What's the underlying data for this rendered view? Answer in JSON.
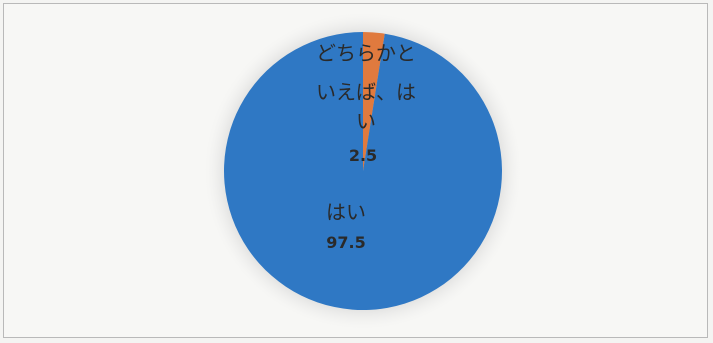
{
  "chart_data": {
    "type": "pie",
    "slices": [
      {
        "label": "はい",
        "value": 97.5,
        "color": "#2f78c4"
      },
      {
        "label": "どちらかといえば、はい",
        "value": 2.5,
        "color": "#e07a3e"
      }
    ],
    "label_lines": {
      "small": [
        "どちらかと",
        "いえば、は",
        "い"
      ],
      "large": [
        "はい"
      ]
    },
    "value_labels": [
      "97.5",
      "2.5"
    ],
    "start_angle_deg": 0,
    "direction": "counterclockwise"
  }
}
